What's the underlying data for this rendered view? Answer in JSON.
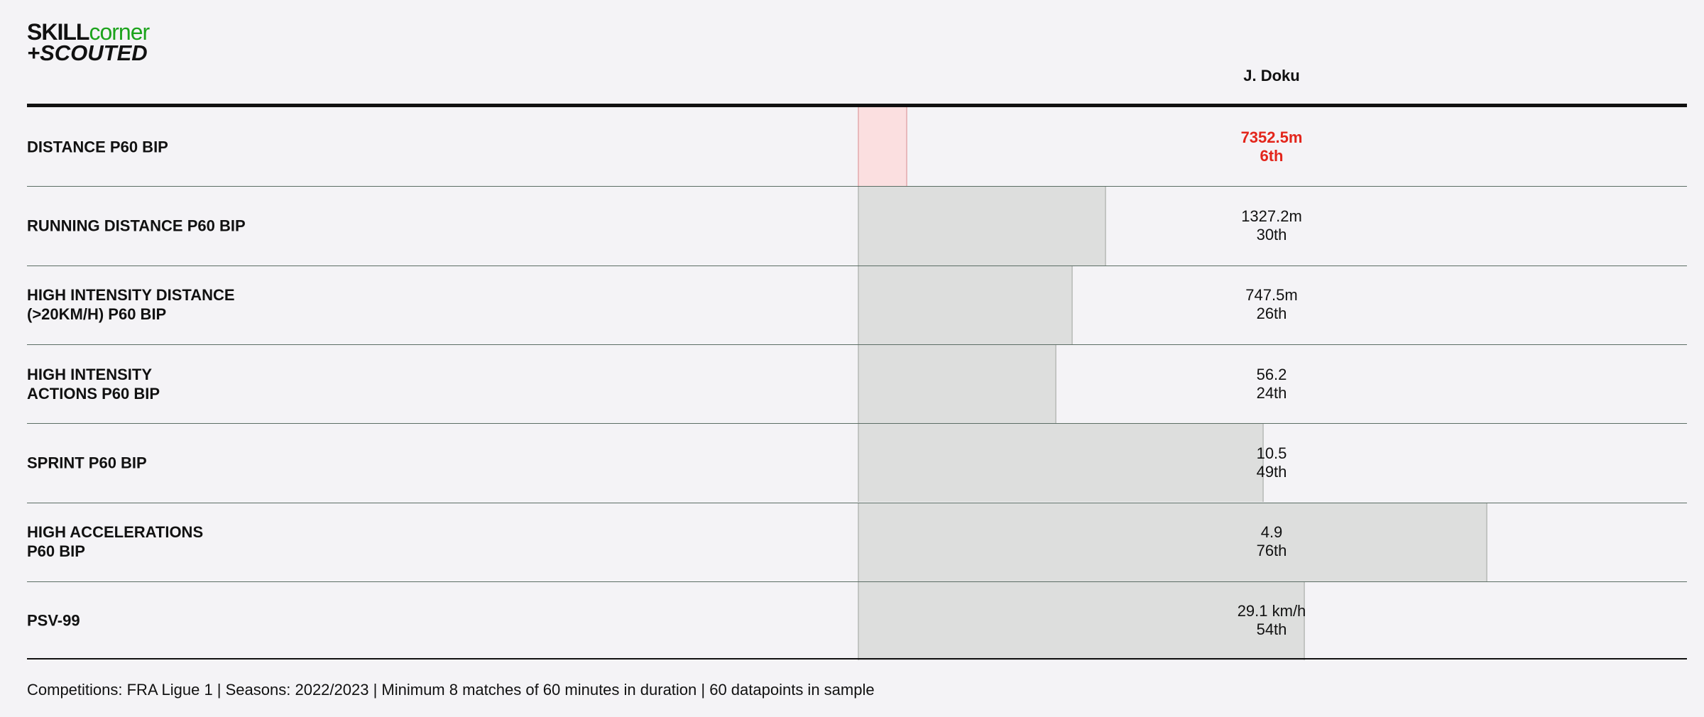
{
  "logo": {
    "part1": "SKILL",
    "part2": "corner",
    "part3": "+SCOUTED"
  },
  "header": {
    "player": "J. Doku"
  },
  "scale": {
    "min": 0,
    "max": 100
  },
  "colors": {
    "bar": "#dddedd",
    "bar_border": "#c2c4c2",
    "highlight_bar": "#fbdfe0",
    "highlight_border": "#e8b8bb",
    "highlight_text": "#e3251b"
  },
  "rows": [
    {
      "label": "DISTANCE P60 BIP",
      "value": "7352.5m",
      "rank": {
        "value": 6,
        "label": "6th"
      },
      "highlight": true
    },
    {
      "label": "RUNNING DISTANCE P60 BIP",
      "value": "1327.2m",
      "rank": {
        "value": 30,
        "label": "30th"
      },
      "highlight": false
    },
    {
      "label": "HIGH INTENSITY DISTANCE\n(>20KM/H) P60 BIP",
      "value": "747.5m",
      "rank": {
        "value": 26,
        "label": "26th"
      },
      "highlight": false
    },
    {
      "label": "HIGH INTENSITY\nACTIONS P60 BIP",
      "value": "56.2",
      "rank": {
        "value": 24,
        "label": "24th"
      },
      "highlight": false
    },
    {
      "label": "SPRINT P60 BIP",
      "value": "10.5",
      "rank": {
        "value": 49,
        "label": "49th"
      },
      "highlight": false
    },
    {
      "label": "HIGH ACCELERATIONS\nP60 BIP",
      "value": "4.9",
      "rank": {
        "value": 76,
        "label": "76th"
      },
      "highlight": false
    },
    {
      "label": "PSV-99",
      "value": "29.1 km/h",
      "rank": {
        "value": 54,
        "label": "54th"
      },
      "highlight": false
    }
  ],
  "footer": "Competitions: FRA Ligue 1 | Seasons: 2022/2023 | Minimum 8 matches of 60 minutes in duration | 60 datapoints in sample"
}
